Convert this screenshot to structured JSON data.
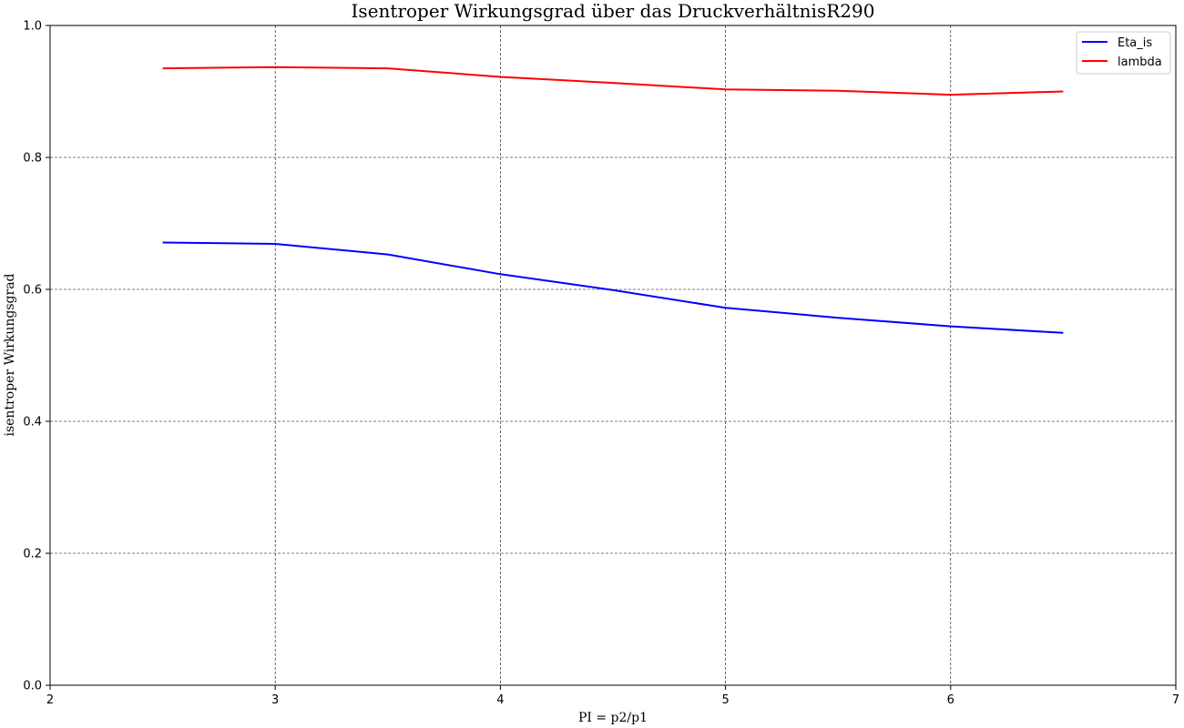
{
  "chart_data": {
    "type": "line",
    "title": "Isentroper Wirkungsgrad über das DruckverhältnisR290",
    "xlabel": "PI = p2/p1",
    "ylabel": "isentroper Wirkungsgrad",
    "xlim": [
      2,
      7
    ],
    "ylim": [
      0,
      1.0
    ],
    "x_ticks": [
      2,
      3,
      4,
      5,
      6,
      7
    ],
    "x_tick_labels": [
      "2",
      "3",
      "4",
      "5",
      "6",
      "7"
    ],
    "y_ticks": [
      0.0,
      0.2,
      0.4,
      0.6,
      0.8,
      1.0
    ],
    "y_tick_labels": [
      "0.0",
      "0.2",
      "0.4",
      "0.6",
      "0.8",
      "1.0"
    ],
    "grid": true,
    "legend_position": "top-right",
    "series": [
      {
        "name": "Eta_is",
        "color": "#0000ff",
        "x": [
          2.5,
          3.0,
          3.5,
          4.0,
          4.5,
          5.0,
          5.5,
          6.0,
          6.5
        ],
        "y": [
          0.671,
          0.669,
          0.653,
          0.623,
          0.599,
          0.572,
          0.557,
          0.544,
          0.534
        ]
      },
      {
        "name": "lambda",
        "color": "#ff0000",
        "x": [
          2.5,
          3.0,
          3.5,
          4.0,
          4.5,
          5.0,
          5.5,
          6.0,
          6.5
        ],
        "y": [
          0.935,
          0.937,
          0.935,
          0.922,
          0.913,
          0.903,
          0.901,
          0.895,
          0.9
        ]
      }
    ]
  }
}
